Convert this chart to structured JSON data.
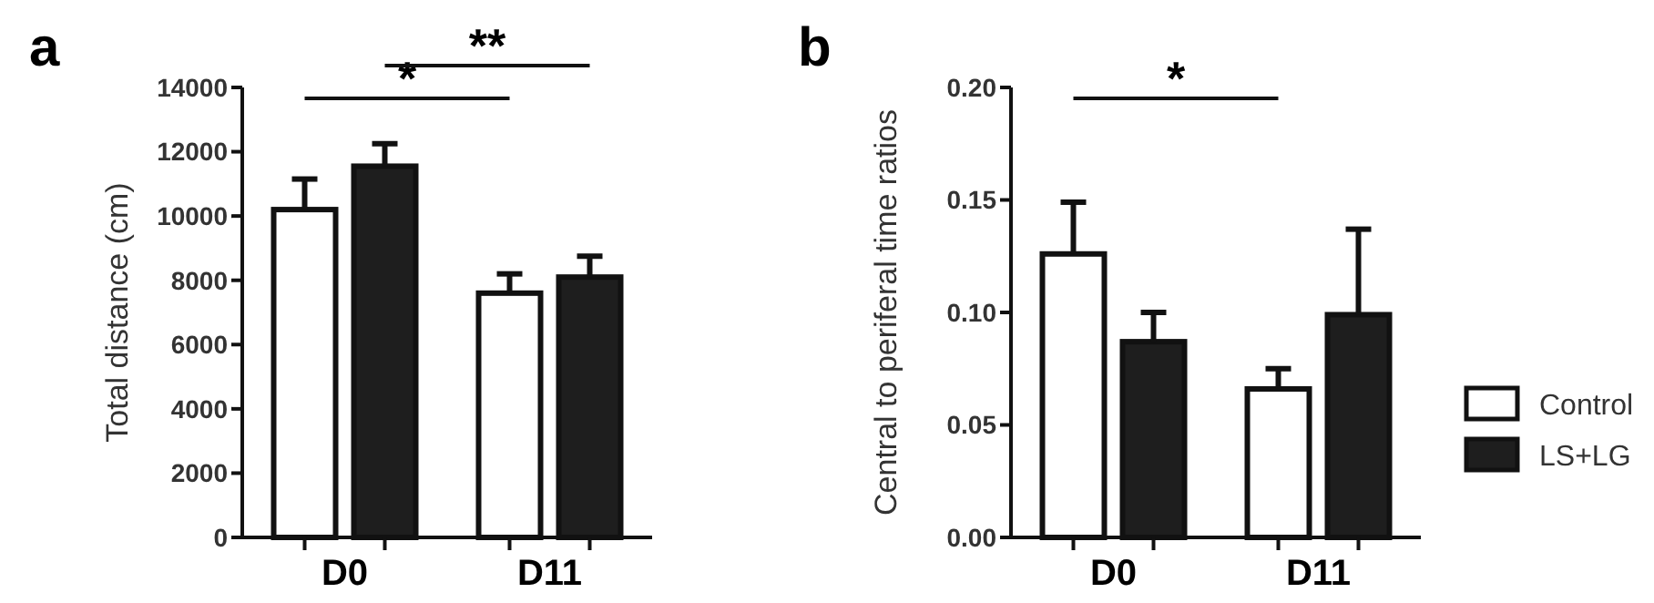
{
  "chart_data": [
    {
      "type": "bar",
      "title": "a",
      "ylabel": "Total distance (cm)",
      "categories": [
        "D0",
        "D11"
      ],
      "ylim": [
        0,
        14000
      ],
      "yticks": [
        0,
        2000,
        4000,
        6000,
        8000,
        10000,
        12000,
        14000
      ],
      "grid": false,
      "legend": false,
      "annotations": [
        "*",
        "**"
      ],
      "series": [
        {
          "color": "#ffffff",
          "values": [
            10200,
            7600
          ],
          "errors": [
            [
              10200,
              11150
            ],
            [
              7600,
              8200
            ]
          ]
        },
        {
          "color": "#1e1e1e",
          "values": [
            11550,
            8100
          ],
          "errors": [
            [
              11550,
              12250
            ],
            [
              8100,
              8750
            ]
          ]
        }
      ]
    },
    {
      "type": "bar",
      "title": "b",
      "ylabel": "Central to periferal time ratios",
      "categories": [
        "D0",
        "D11"
      ],
      "ylim": [
        0,
        0.2
      ],
      "yticks": [
        {
          "value": 0,
          "label": "0.00"
        },
        {
          "value": 0.05,
          "label": "0.05"
        },
        {
          "value": 0.1,
          "label": "0.10"
        },
        {
          "value": 0.15,
          "label": "0.15"
        },
        {
          "value": 0.2,
          "label": "0.20"
        }
      ],
      "grid": false,
      "legend": "right",
      "annotations": [
        "*"
      ],
      "series": [
        {
          "name": "Control",
          "color": "#ffffff",
          "values": [
            0.126,
            0.066
          ],
          "errors": [
            [
              0.126,
              0.149
            ],
            [
              0.066,
              0.075
            ]
          ]
        },
        {
          "name": "LS+LG",
          "color": "#1e1e1e",
          "values": [
            0.087,
            0.099
          ],
          "errors": [
            [
              0.087,
              0.1
            ],
            [
              0.099,
              0.137
            ]
          ]
        }
      ]
    }
  ]
}
